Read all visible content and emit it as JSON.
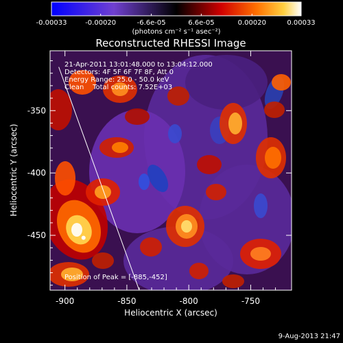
{
  "colorbar": {
    "tick_labels": [
      "-0.00033",
      "-0.00020",
      "-6.6e-05",
      "6.6e-05",
      "0.00020",
      "0.00033"
    ],
    "tick_values": [
      -0.00033,
      -0.0002,
      -6.6e-05,
      6.6e-05,
      0.0002,
      0.00033
    ],
    "range": [
      -0.00033,
      0.00033
    ],
    "unit_label": "(photons cm⁻² s⁻¹ asec⁻²)"
  },
  "plot": {
    "title": "Reconstructed RHESSI Image",
    "annotations": [
      "21-Apr-2011 13:01:48.000 to 13:04:12.000",
      "Detectors: 4F 5F 6F 7F 8F, Att 0",
      "Energy Range: 25.0 - 50.0 keV",
      "Clean    Total counts: 7.52E+03"
    ],
    "peak_label": "Position of Peak = [-885,-452]"
  },
  "chart_data": {
    "type": "heatmap",
    "title": "Reconstructed RHESSI Image",
    "xlabel": "Heliocentric X (arcsec)",
    "ylabel": "Heliocentric Y (arcsec)",
    "xlim": [
      -912,
      -717
    ],
    "ylim": [
      -494,
      -302
    ],
    "x_ticks": [
      -900,
      -850,
      -800,
      -750
    ],
    "x_tick_labels": [
      "-900",
      "-850",
      "-800",
      "-750"
    ],
    "y_ticks": [
      -450,
      -400,
      -350
    ],
    "y_tick_labels": [
      "-450",
      "-400",
      "-350"
    ],
    "value_range": [
      -0.00033,
      0.00033
    ],
    "peak": {
      "x": -885,
      "y": -452
    },
    "limb_line": [
      [
        -905,
        -315
      ],
      [
        -840,
        -494
      ]
    ],
    "colors": {
      "min": "#0000ff",
      "mid_low": "#7f3fcf",
      "zero": "#000000",
      "mid_high": "#ff3c00",
      "max": "#ffffff"
    }
  },
  "footer": {
    "timestamp": "9-Aug-2013 21:47"
  }
}
